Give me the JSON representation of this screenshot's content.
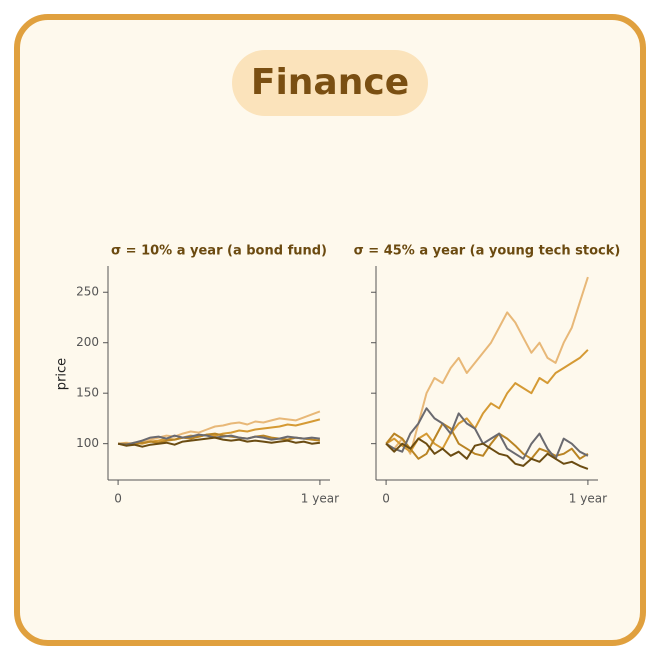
{
  "header": {
    "title": "Finance"
  },
  "chart_data": [
    {
      "type": "line",
      "title": "σ = 10% a year (a bond fund)",
      "y_label": "price",
      "x": [
        0,
        0.04,
        0.08,
        0.12,
        0.16,
        0.2,
        0.24,
        0.28,
        0.32,
        0.36,
        0.4,
        0.44,
        0.48,
        0.52,
        0.56,
        0.6,
        0.64,
        0.68,
        0.72,
        0.76,
        0.8,
        0.84,
        0.88,
        0.92,
        0.96,
        1
      ],
      "xlim": [
        -0.05,
        1.05
      ],
      "xticks": [
        0,
        {
          "value": 1,
          "label": "1 year"
        }
      ],
      "ylim": [
        64,
        276
      ],
      "yticks": [
        100,
        150,
        200,
        250
      ],
      "ytick_labels": true,
      "series": [
        {
          "color": "#e8b878",
          "values": [
            100,
            101,
            100,
            103,
            104,
            106,
            108,
            107,
            110,
            112,
            111,
            114,
            117,
            118,
            120,
            121,
            119,
            122,
            121,
            123,
            125,
            124,
            123,
            126,
            129,
            132
          ]
        },
        {
          "color": "#d59a34",
          "values": [
            100,
            99,
            101,
            100,
            102,
            103,
            105,
            104,
            106,
            108,
            107,
            109,
            108,
            110,
            111,
            113,
            112,
            114,
            115,
            116,
            117,
            119,
            118,
            120,
            122,
            124
          ]
        },
        {
          "color": "#b98424",
          "values": [
            100,
            100,
            99,
            101,
            102,
            101,
            103,
            104,
            106,
            105,
            107,
            109,
            110,
            108,
            107,
            106,
            105,
            107,
            108,
            106,
            105,
            104,
            106,
            105,
            104,
            103
          ]
        },
        {
          "color": "#6a6a70",
          "values": [
            100,
            99,
            101,
            103,
            106,
            107,
            105,
            108,
            106,
            107,
            109,
            108,
            106,
            107,
            108,
            106,
            105,
            107,
            106,
            104,
            105,
            107,
            106,
            105,
            106,
            105
          ]
        },
        {
          "color": "#6b4c12",
          "values": [
            100,
            98,
            99,
            97,
            99,
            100,
            101,
            99,
            102,
            103,
            104,
            105,
            106,
            104,
            103,
            104,
            102,
            103,
            102,
            101,
            102,
            103,
            101,
            102,
            100,
            101
          ]
        }
      ]
    },
    {
      "type": "line",
      "title": "σ = 45% a year (a young tech stock)",
      "x": [
        0,
        0.04,
        0.08,
        0.12,
        0.16,
        0.2,
        0.24,
        0.28,
        0.32,
        0.36,
        0.4,
        0.44,
        0.48,
        0.52,
        0.56,
        0.6,
        0.64,
        0.68,
        0.72,
        0.76,
        0.8,
        0.84,
        0.88,
        0.92,
        0.96,
        1
      ],
      "xlim": [
        -0.05,
        1.05
      ],
      "xticks": [
        0,
        {
          "value": 1,
          "label": "1 year"
        }
      ],
      "ylim": [
        64,
        276
      ],
      "yticks": [
        100,
        150,
        200,
        250
      ],
      "ytick_labels": false,
      "series": [
        {
          "color": "#e8b878",
          "values": [
            100,
            95,
            105,
            90,
            120,
            150,
            165,
            160,
            175,
            185,
            170,
            180,
            190,
            200,
            215,
            230,
            220,
            205,
            190,
            200,
            185,
            180,
            200,
            215,
            240,
            265
          ]
        },
        {
          "color": "#d59a34",
          "values": [
            100,
            105,
            98,
            92,
            105,
            110,
            100,
            95,
            110,
            120,
            125,
            115,
            130,
            140,
            135,
            150,
            160,
            155,
            150,
            165,
            160,
            170,
            175,
            180,
            185,
            193
          ]
        },
        {
          "color": "#b98424",
          "values": [
            100,
            110,
            105,
            95,
            85,
            90,
            105,
            120,
            115,
            100,
            95,
            90,
            88,
            100,
            110,
            105,
            98,
            90,
            85,
            95,
            92,
            88,
            90,
            95,
            85,
            90
          ]
        },
        {
          "color": "#6a6a70",
          "values": [
            100,
            95,
            92,
            110,
            120,
            135,
            125,
            120,
            110,
            130,
            120,
            115,
            100,
            105,
            110,
            95,
            90,
            85,
            100,
            110,
            95,
            85,
            105,
            100,
            92,
            88
          ]
        },
        {
          "color": "#6b4c12",
          "values": [
            100,
            92,
            100,
            95,
            105,
            100,
            90,
            95,
            88,
            92,
            85,
            98,
            100,
            95,
            90,
            88,
            80,
            78,
            85,
            82,
            90,
            85,
            80,
            82,
            78,
            75
          ]
        }
      ]
    }
  ]
}
